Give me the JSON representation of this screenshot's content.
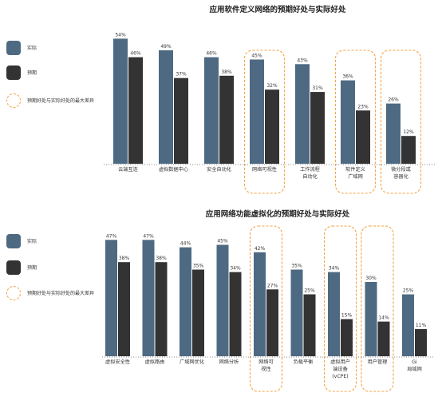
{
  "legend": {
    "actual": "实际",
    "expected": "预期",
    "gap": "预期好处与实际好处的最大差异"
  },
  "colors": {
    "actual": "#4e6a82",
    "expected": "#333333",
    "highlight": "#f4a343"
  },
  "chart_data": [
    {
      "type": "bar",
      "title": "应用软件定义网络的预期好处与实际好处",
      "categories": [
        "云端互连",
        "虚拟数据中心",
        "安全自动化",
        "网络可视性",
        "工作流程\n自动化",
        "软件定义\n广域网",
        "微分段或\n容器化"
      ],
      "series": [
        {
          "name": "实际",
          "values": [
            54,
            49,
            46,
            45,
            43,
            36,
            26
          ]
        },
        {
          "name": "预期",
          "values": [
            46,
            37,
            38,
            32,
            31,
            23,
            12
          ]
        }
      ],
      "value_labels": {
        "actual": [
          "54%",
          "49%",
          "46%",
          "45%",
          "43%",
          "36%",
          "26%"
        ],
        "expected": [
          "46%",
          "37%",
          "38%",
          "32%",
          "31%",
          "23%",
          "12%"
        ]
      },
      "highlighted": [
        3,
        5,
        6
      ]
    },
    {
      "type": "bar",
      "title": "应用网络功能虚拟化的预期好处与实际好处",
      "categories": [
        "虚拟安全性",
        "虚拟路由",
        "广域网优化",
        "网络分析",
        "网络可\n视性",
        "负载平衡",
        "虚拟用户\n端设备\n(vCPE)",
        "用户管理",
        "Gi\n局域网"
      ],
      "series": [
        {
          "name": "实际",
          "values": [
            47,
            47,
            44,
            45,
            42,
            35,
            34,
            30,
            25
          ]
        },
        {
          "name": "预期",
          "values": [
            38,
            38,
            35,
            34,
            27,
            25,
            15,
            14,
            11
          ]
        }
      ],
      "value_labels": {
        "actual": [
          "47%",
          "47%",
          "44%",
          "45%",
          "42%",
          "35%",
          "34%",
          "30%",
          "25%"
        ],
        "expected": [
          "38%",
          "38%",
          "35%",
          "34%",
          "27%",
          "25%",
          "15%",
          "14%",
          "11%"
        ]
      },
      "highlighted": [
        4,
        6,
        7
      ]
    }
  ]
}
